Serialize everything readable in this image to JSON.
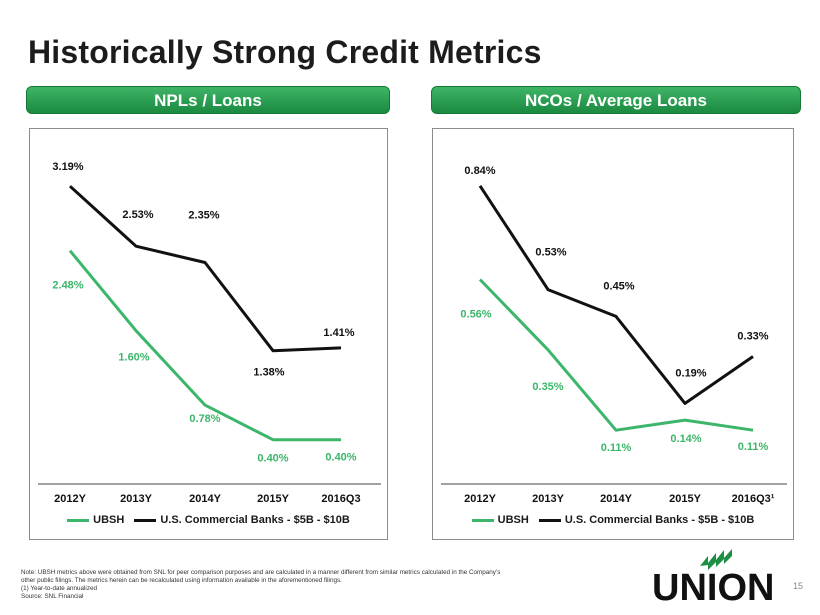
{
  "page": {
    "title": "Historically Strong Credit Metrics",
    "page_number": "15",
    "brand": "UNION",
    "colors": {
      "ubsh": "#3cb66a",
      "peer": "#111111",
      "accent": "#1d8f44"
    }
  },
  "notes": [
    "Note: UBSH metrics above were obtained from SNL for peer comparison purposes and are calculated in a manner different from similar metrics calculated in the Company’s",
    "other public filings. The metrics herein can be recalculated using information available in the aforementioned filings.",
    "(1)    Year-to-date annualized",
    "Source: SNL Financial"
  ],
  "chart_data": [
    {
      "type": "line",
      "title": "NPLs / Loans",
      "categories": [
        "2012Y",
        "2013Y",
        "2014Y",
        "2015Y",
        "2016Q3"
      ],
      "series": [
        {
          "name": "UBSH",
          "values": [
            2.48,
            1.6,
            0.78,
            0.4,
            0.4
          ],
          "labels": [
            "2.48%",
            "1.60%",
            "0.78%",
            "0.40%",
            "0.40%"
          ]
        },
        {
          "name": "U.S. Commercial Banks - $5B - $10B",
          "values": [
            3.19,
            2.53,
            2.35,
            1.38,
            1.41
          ],
          "labels": [
            "3.19%",
            "2.53%",
            "2.35%",
            "1.38%",
            "1.41%"
          ]
        }
      ],
      "ylim": [
        0,
        3.6
      ],
      "xlabel": "",
      "ylabel": "",
      "legend": "bottom"
    },
    {
      "type": "line",
      "title": "NCOs / Average Loans",
      "categories": [
        "2012Y",
        "2013Y",
        "2014Y",
        "2015Y",
        "2016Q3¹"
      ],
      "series": [
        {
          "name": "UBSH",
          "values": [
            0.56,
            0.35,
            0.11,
            0.14,
            0.11
          ],
          "labels": [
            "0.56%",
            "0.35%",
            "0.11%",
            "0.14%",
            "0.11%"
          ]
        },
        {
          "name": "U.S. Commercial Banks - $5B - $10B",
          "values": [
            0.84,
            0.53,
            0.45,
            0.19,
            0.33
          ],
          "labels": [
            "0.84%",
            "0.53%",
            "0.45%",
            "0.19%",
            "0.33%"
          ]
        }
      ],
      "ylim": [
        0,
        0.95
      ],
      "xlabel": "",
      "ylabel": "",
      "legend": "bottom"
    }
  ]
}
